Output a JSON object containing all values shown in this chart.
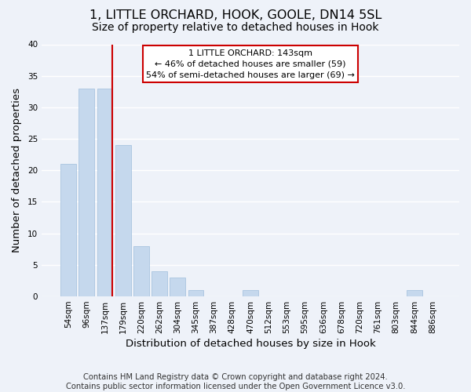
{
  "title": "1, LITTLE ORCHARD, HOOK, GOOLE, DN14 5SL",
  "subtitle": "Size of property relative to detached houses in Hook",
  "xlabel": "Distribution of detached houses by size in Hook",
  "ylabel": "Number of detached properties",
  "bar_labels": [
    "54sqm",
    "96sqm",
    "137sqm",
    "179sqm",
    "220sqm",
    "262sqm",
    "304sqm",
    "345sqm",
    "387sqm",
    "428sqm",
    "470sqm",
    "512sqm",
    "553sqm",
    "595sqm",
    "636sqm",
    "678sqm",
    "720sqm",
    "761sqm",
    "803sqm",
    "844sqm",
    "886sqm"
  ],
  "bar_values": [
    21,
    33,
    33,
    24,
    8,
    4,
    3,
    1,
    0,
    0,
    1,
    0,
    0,
    0,
    0,
    0,
    0,
    0,
    0,
    1,
    0
  ],
  "bar_color": "#c5d8ed",
  "bar_edge_color": "#a8c4e0",
  "ylim": [
    0,
    40
  ],
  "yticks": [
    0,
    5,
    10,
    15,
    20,
    25,
    30,
    35,
    40
  ],
  "property_line_index": 2,
  "property_line_color": "#cc0000",
  "annotation_line1": "1 LITTLE ORCHARD: 143sqm",
  "annotation_line2": "← 46% of detached houses are smaller (59)",
  "annotation_line3": "54% of semi-detached houses are larger (69) →",
  "footer_line1": "Contains HM Land Registry data © Crown copyright and database right 2024.",
  "footer_line2": "Contains public sector information licensed under the Open Government Licence v3.0.",
  "background_color": "#eef2f9",
  "plot_background_color": "#eef2f9",
  "grid_color": "#ffffff",
  "title_fontsize": 11.5,
  "subtitle_fontsize": 10,
  "axis_label_fontsize": 9.5,
  "tick_fontsize": 7.5,
  "footer_fontsize": 7.2
}
